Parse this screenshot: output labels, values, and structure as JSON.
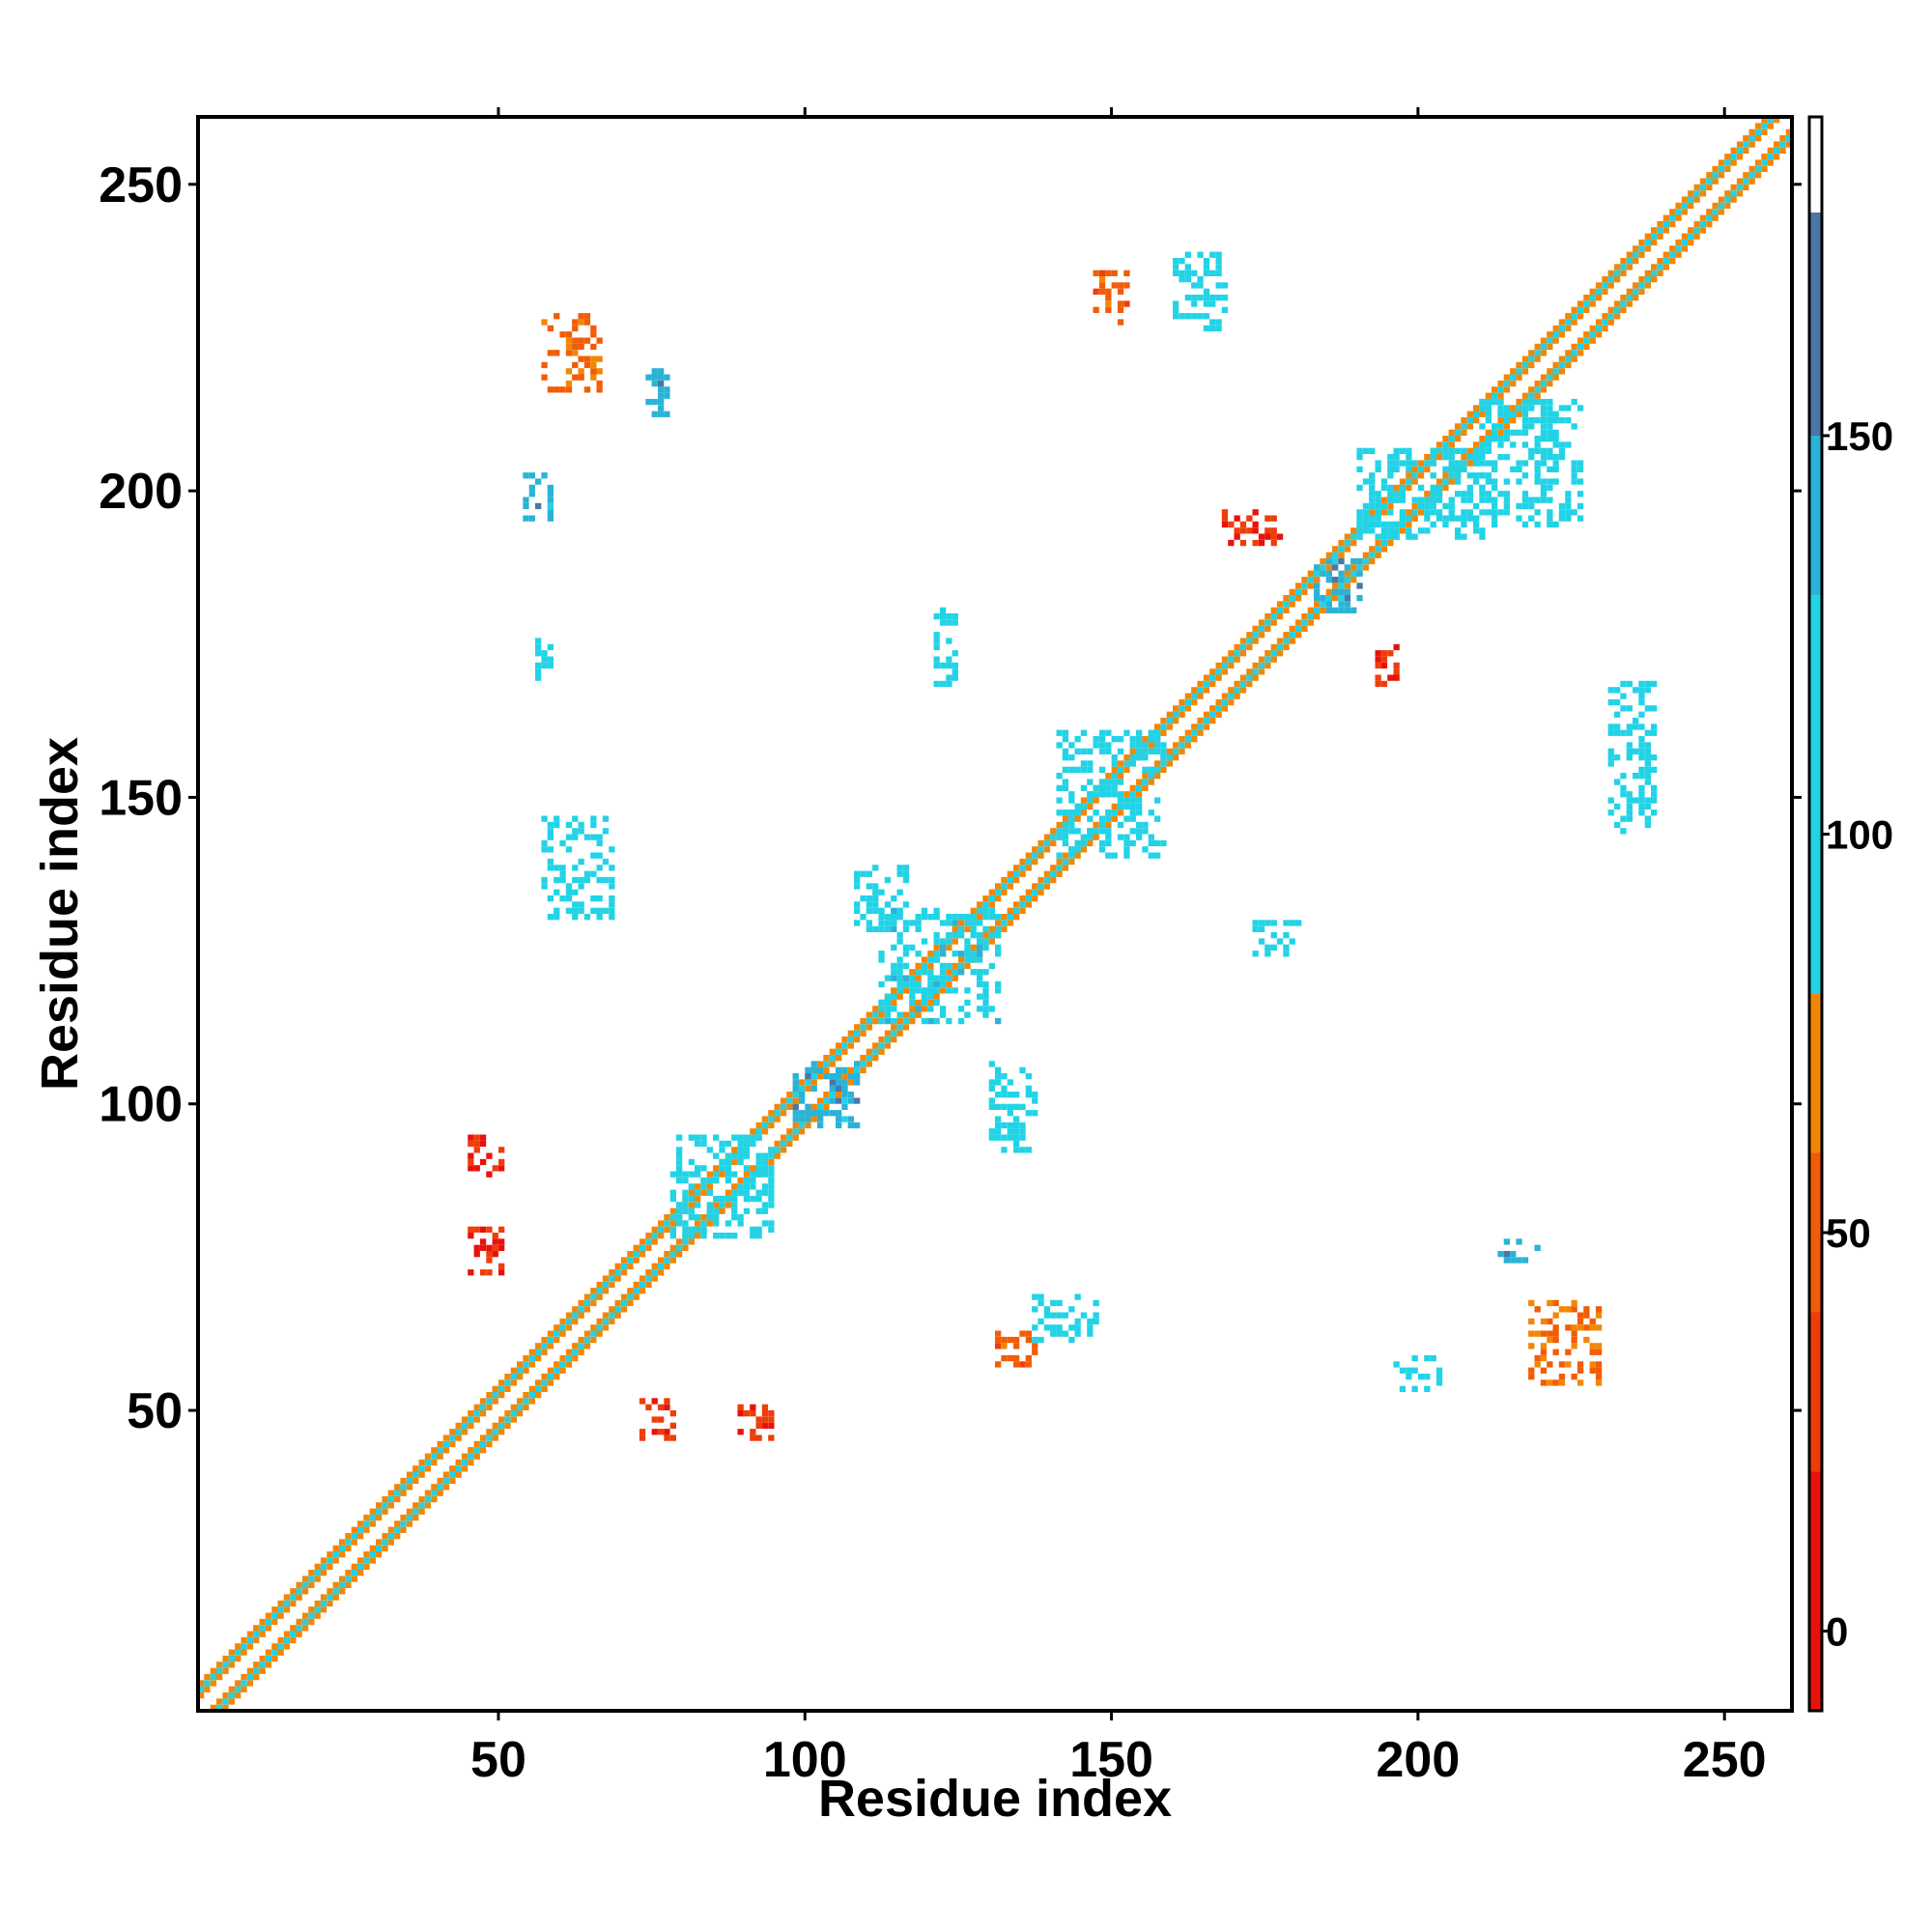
{
  "chart_data": {
    "type": "heatmap",
    "title": "",
    "xlabel": "Residue index",
    "ylabel": "Residue index",
    "xlim": [
      1,
      261
    ],
    "ylim": [
      1,
      261
    ],
    "x_ticks": [
      50,
      100,
      150,
      200,
      250
    ],
    "y_ticks": [
      50,
      100,
      150,
      200,
      250
    ],
    "x_tick_labels": [
      "50",
      "100",
      "150",
      "200",
      "250"
    ],
    "y_tick_labels": [
      "50",
      "100",
      "150",
      "200",
      "250"
    ],
    "grid": false,
    "colorbar": {
      "range": [
        -10,
        190
      ],
      "ticks": [
        0,
        50,
        100,
        150
      ],
      "tick_labels": [
        "0",
        "50",
        "100",
        "150"
      ],
      "bands": [
        {
          "from": -10,
          "to": 20,
          "color": "#e8120c"
        },
        {
          "from": 20,
          "to": 40,
          "color": "#ef3d0a"
        },
        {
          "from": 40,
          "to": 60,
          "color": "#f25c06"
        },
        {
          "from": 60,
          "to": 80,
          "color": "#f28705"
        },
        {
          "from": 80,
          "to": 130,
          "color": "#22d3e6"
        },
        {
          "from": 130,
          "to": 150,
          "color": "#2ab3d6"
        },
        {
          "from": 150,
          "to": 178,
          "color": "#4a76a8"
        },
        {
          "from": 178,
          "to": 190,
          "color": "#ffffff"
        }
      ]
    },
    "diagonal": {
      "start": 1,
      "end": 261,
      "band_halfwidth_residues": 4
    },
    "clusters": [
      {
        "x": [
          45,
          50
        ],
        "y": [
          88,
          94
        ],
        "value": 20
      },
      {
        "x": [
          45,
          50
        ],
        "y": [
          72,
          79
        ],
        "value": 20
      },
      {
        "x": [
          73,
          78
        ],
        "y": [
          45,
          51
        ],
        "value": 25
      },
      {
        "x": [
          89,
          94
        ],
        "y": [
          45,
          50
        ],
        "value": 25
      },
      {
        "x": [
          57,
          66
        ],
        "y": [
          216,
          228
        ],
        "value": 55
      },
      {
        "x": [
          74,
          77
        ],
        "y": [
          212,
          220
        ],
        "value": 140
      },
      {
        "x": [
          54,
          58
        ],
        "y": [
          195,
          202
        ],
        "value": 140
      },
      {
        "x": [
          56,
          58
        ],
        "y": [
          168,
          176
        ],
        "value": 110
      },
      {
        "x": [
          57,
          68
        ],
        "y": [
          130,
          146
        ],
        "value": 100
      },
      {
        "x": [
          112,
          131
        ],
        "y": [
          113,
          131
        ],
        "value": 120
      },
      {
        "x": [
          98,
          108
        ],
        "y": [
          96,
          106
        ],
        "value": 140
      },
      {
        "x": [
          141,
          158
        ],
        "y": [
          140,
          160
        ],
        "value": 110
      },
      {
        "x": [
          183,
          190
        ],
        "y": [
          180,
          188
        ],
        "value": 140
      },
      {
        "x": [
          190,
          210
        ],
        "y": [
          192,
          206
        ],
        "value": 100
      },
      {
        "x": [
          193,
          196
        ],
        "y": [
          168,
          174
        ],
        "value": 20
      },
      {
        "x": [
          168,
          177
        ],
        "y": [
          191,
          196
        ],
        "value": 25
      },
      {
        "x": [
          131,
          137
        ],
        "y": [
          57,
          62
        ],
        "value": 50
      },
      {
        "x": [
          137,
          147
        ],
        "y": [
          61,
          68
        ],
        "value": 100
      },
      {
        "x": [
          196,
          203
        ],
        "y": [
          53,
          58
        ],
        "value": 110
      },
      {
        "x": [
          218,
          229
        ],
        "y": [
          54,
          67
        ],
        "value": 60
      },
      {
        "x": [
          213,
          219
        ],
        "y": [
          74,
          77
        ],
        "value": 140
      },
      {
        "x": [
          147,
          152
        ],
        "y": [
          227,
          235
        ],
        "value": 50
      },
      {
        "x": [
          160,
          168
        ],
        "y": [
          226,
          238
        ],
        "value": 100
      },
      {
        "x": [
          231,
          238
        ],
        "y": [
          144,
          168
        ],
        "value": 100
      },
      {
        "x": [
          173,
          180
        ],
        "y": [
          124,
          129
        ],
        "value": 100
      },
      {
        "x": [
          130,
          137
        ],
        "y": [
          92,
          106
        ],
        "value": 100
      },
      {
        "x": [
          78,
          94
        ],
        "y": [
          78,
          94
        ],
        "value": 100
      },
      {
        "x": [
          108,
          116
        ],
        "y": [
          128,
          138
        ],
        "value": 100
      },
      {
        "x": [
          209,
          226
        ],
        "y": [
          194,
          214
        ],
        "value": 110
      },
      {
        "x": [
          121,
          124
        ],
        "y": [
          168,
          180
        ],
        "value": 110
      }
    ]
  }
}
